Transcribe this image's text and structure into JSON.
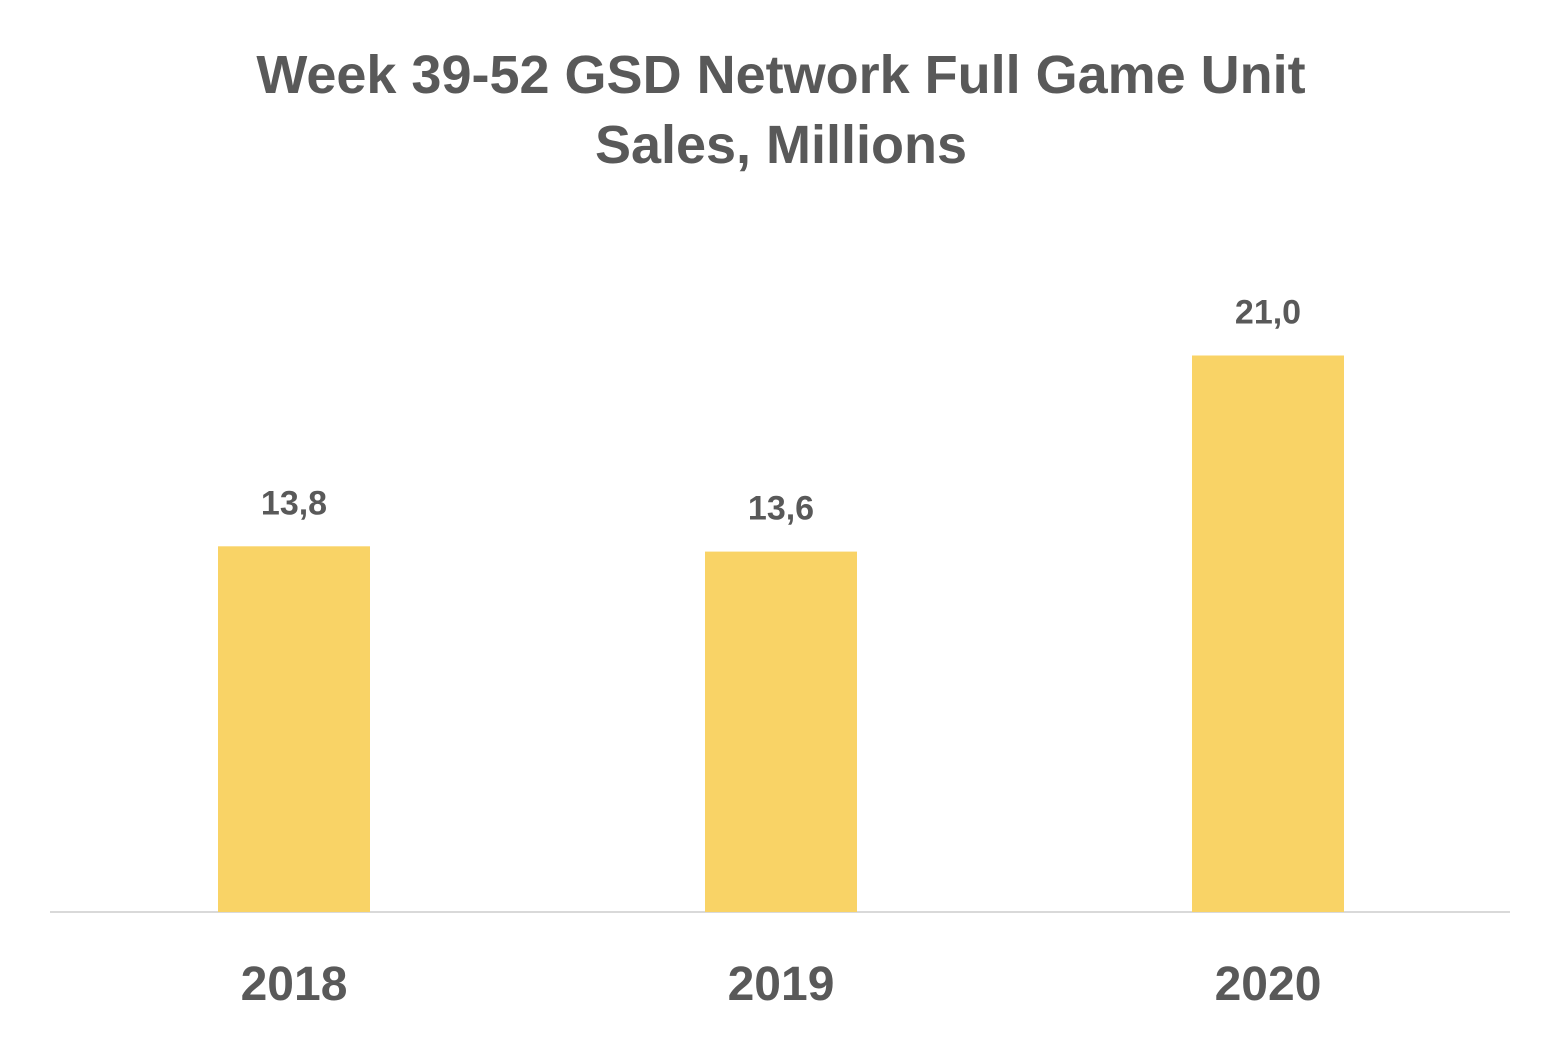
{
  "chart_data": {
    "type": "bar",
    "title_lines": [
      "Week 39-52 GSD Network Full Game Unit",
      "Sales,  Millions"
    ],
    "categories": [
      "2018",
      "2019",
      "2020"
    ],
    "values": [
      13.8,
      13.6,
      21.0
    ],
    "data_labels": [
      "13,8",
      "13,6",
      "21,0"
    ],
    "xlabel": "",
    "ylabel": "",
    "ylim": [
      0,
      22
    ],
    "grid": false,
    "legend": "none",
    "bar_color": "#F9D366",
    "axis_color": "#D9D9D9",
    "label_color": "#595959"
  }
}
